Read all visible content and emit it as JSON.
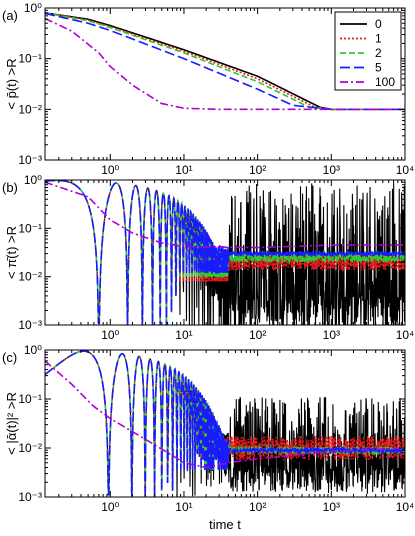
{
  "colors": {
    "black": "#000000",
    "red": "#e41a1c",
    "green": "#2ecc2e",
    "blue": "#1a1aff",
    "violet": "#b000d8"
  },
  "chart_data": [
    {
      "panel": "(a)",
      "type": "line",
      "ylabel": "< p̄(t) >R",
      "xlim": [
        0.13,
        10000
      ],
      "ylim": [
        0.001,
        1
      ],
      "x_scale": "log",
      "y_scale": "log",
      "xticks": [
        "10⁰",
        "10¹",
        "10²",
        "10³",
        "10⁴"
      ],
      "yticks": [
        "10⁰",
        "10⁻¹",
        "10⁻²",
        "10⁻³"
      ],
      "legend": {
        "position": "top-right",
        "entries": [
          "0",
          "1",
          "2",
          "5",
          "100"
        ]
      },
      "series": [
        {
          "name": "0",
          "color": "#000000",
          "style": "solid",
          "points": [
            [
              0.13,
              0.8
            ],
            [
              0.5,
              0.6
            ],
            [
              1,
              0.45
            ],
            [
              10,
              0.15
            ],
            [
              100,
              0.045
            ],
            [
              700,
              0.011
            ],
            [
              1000,
              0.01
            ],
            [
              10000,
              0.01
            ]
          ]
        },
        {
          "name": "1",
          "color": "#e41a1c",
          "style": "dotted",
          "points": [
            [
              0.13,
              0.8
            ],
            [
              0.5,
              0.58
            ],
            [
              1,
              0.43
            ],
            [
              10,
              0.14
            ],
            [
              100,
              0.04
            ],
            [
              600,
              0.011
            ],
            [
              1000,
              0.01
            ],
            [
              10000,
              0.01
            ]
          ]
        },
        {
          "name": "2",
          "color": "#2ecc2e",
          "style": "dashed",
          "points": [
            [
              0.13,
              0.8
            ],
            [
              0.5,
              0.56
            ],
            [
              1,
              0.41
            ],
            [
              10,
              0.13
            ],
            [
              100,
              0.035
            ],
            [
              500,
              0.011
            ],
            [
              1000,
              0.01
            ],
            [
              10000,
              0.01
            ]
          ]
        },
        {
          "name": "5",
          "color": "#1a1aff",
          "style": "longdash",
          "points": [
            [
              0.13,
              0.78
            ],
            [
              0.5,
              0.5
            ],
            [
              1,
              0.36
            ],
            [
              10,
              0.1
            ],
            [
              100,
              0.025
            ],
            [
              300,
              0.012
            ],
            [
              1000,
              0.01
            ],
            [
              10000,
              0.01
            ]
          ]
        },
        {
          "name": "100",
          "color": "#b000d8",
          "style": "dashdot",
          "points": [
            [
              0.13,
              0.62
            ],
            [
              0.3,
              0.35
            ],
            [
              0.7,
              0.13
            ],
            [
              1,
              0.07
            ],
            [
              2,
              0.03
            ],
            [
              5,
              0.013
            ],
            [
              10,
              0.0105
            ],
            [
              30,
              0.01
            ],
            [
              10000,
              0.01
            ]
          ]
        }
      ]
    },
    {
      "panel": "(b)",
      "type": "line",
      "ylabel": "< π̄(t) >R",
      "xlim": [
        0.13,
        10000
      ],
      "ylim": [
        0.001,
        1
      ],
      "x_scale": "log",
      "y_scale": "log",
      "xticks": [
        "10⁰",
        "10¹",
        "10²",
        "10³",
        "10⁴"
      ],
      "yticks": [
        "10⁰",
        "10⁻¹",
        "10⁻²",
        "10⁻³"
      ],
      "series": [
        {
          "name": "0",
          "color": "#000000",
          "style": "solid",
          "oscillate": true,
          "center": 0.015,
          "spread": 2.2
        },
        {
          "name": "1",
          "color": "#e41a1c",
          "style": "dotted",
          "oscillate": true,
          "center": 0.02,
          "spread": 0.35
        },
        {
          "name": "2",
          "color": "#2ecc2e",
          "style": "dashed",
          "oscillate": true,
          "center": 0.025,
          "spread": 0.2
        },
        {
          "name": "5",
          "color": "#1a1aff",
          "style": "longdash",
          "oscillate": true,
          "center": 0.03,
          "spread": 0.1
        },
        {
          "name": "100",
          "color": "#b000d8",
          "style": "dashdot",
          "points": [
            [
              0.13,
              0.9
            ],
            [
              0.5,
              0.45
            ],
            [
              1,
              0.15
            ],
            [
              2,
              0.08
            ],
            [
              5,
              0.05
            ],
            [
              10,
              0.042
            ],
            [
              100,
              0.04
            ],
            [
              1000,
              0.045
            ],
            [
              10000,
              0.045
            ]
          ]
        }
      ]
    },
    {
      "panel": "(c)",
      "type": "line",
      "ylabel": "< |ᾱ(t)|² >R",
      "xlabel": "time t",
      "xlim": [
        0.13,
        10000
      ],
      "ylim": [
        0.001,
        1
      ],
      "x_scale": "log",
      "y_scale": "log",
      "xticks": [
        "10⁰",
        "10¹",
        "10²",
        "10³",
        "10⁴"
      ],
      "yticks": [
        "10⁰",
        "10⁻¹",
        "10⁻²",
        "10⁻³"
      ],
      "series": [
        {
          "name": "0",
          "color": "#000000",
          "style": "solid",
          "oscillate": true,
          "center": 0.012,
          "spread": 1.2
        },
        {
          "name": "1",
          "color": "#e41a1c",
          "style": "dotted",
          "oscillate": true,
          "center": 0.01,
          "spread": 0.5
        },
        {
          "name": "2",
          "color": "#2ecc2e",
          "style": "dashed",
          "oscillate": true,
          "center": 0.009,
          "spread": 0.15
        },
        {
          "name": "5",
          "color": "#1a1aff",
          "style": "longdash",
          "oscillate": true,
          "center": 0.009,
          "spread": 0.1
        },
        {
          "name": "100",
          "color": "#b000d8",
          "style": "dashdot",
          "points": [
            [
              0.13,
              0.6
            ],
            [
              0.3,
              0.2
            ],
            [
              0.6,
              0.07
            ],
            [
              1,
              0.04
            ],
            [
              3,
              0.015
            ],
            [
              7,
              0.007
            ],
            [
              10,
              0.005
            ],
            [
              20,
              0.004
            ],
            [
              40,
              0.005
            ],
            [
              100,
              0.006
            ],
            [
              1000,
              0.0085
            ],
            [
              10000,
              0.01
            ]
          ]
        }
      ]
    }
  ]
}
